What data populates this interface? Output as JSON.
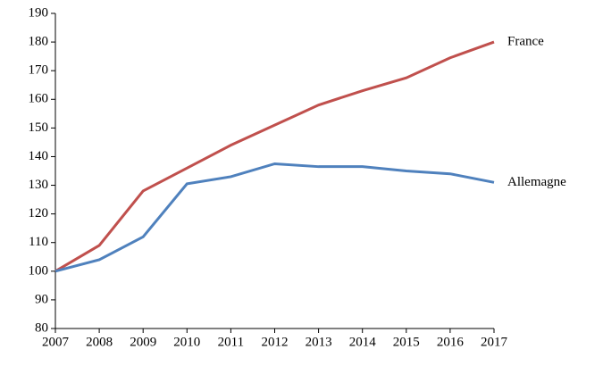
{
  "chart_data": {
    "type": "line",
    "x": [
      2007,
      2008,
      2009,
      2010,
      2011,
      2012,
      2013,
      2014,
      2015,
      2016,
      2017
    ],
    "series": [
      {
        "name": "France",
        "color": "#c0504d",
        "values": [
          100,
          109,
          128,
          136,
          144,
          151,
          158,
          163,
          167.5,
          174.5,
          180
        ]
      },
      {
        "name": "Allemagne",
        "color": "#4f81bd",
        "values": [
          100,
          104,
          112,
          130.5,
          133,
          137.5,
          136.5,
          136.5,
          135,
          134,
          131
        ]
      }
    ],
    "xlim": [
      2007,
      2017
    ],
    "xticks": [
      2007,
      2008,
      2009,
      2010,
      2011,
      2012,
      2013,
      2014,
      2015,
      2016,
      2017
    ],
    "ylim": [
      80,
      190
    ],
    "yticks": [
      80,
      90,
      100,
      110,
      120,
      130,
      140,
      150,
      160,
      170,
      180,
      190
    ],
    "grid": false
  }
}
